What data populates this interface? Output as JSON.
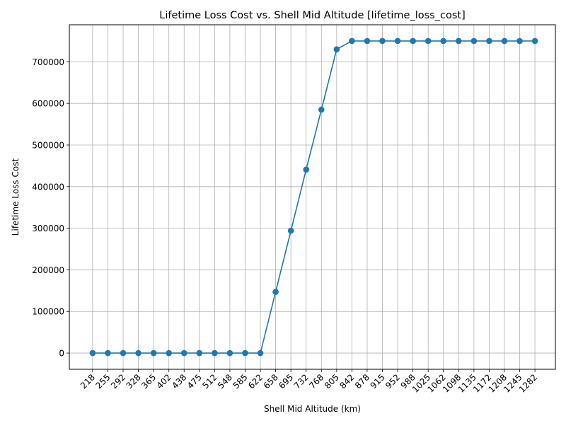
{
  "chart_data": {
    "type": "line",
    "title": "Lifetime Loss Cost vs. Shell Mid Altitude [lifetime_loss_cost]",
    "xlabel": "Shell Mid Altitude (km)",
    "ylabel": "Lifetime Loss Cost",
    "categories": [
      "218",
      "255",
      "292",
      "328",
      "365",
      "402",
      "438",
      "475",
      "512",
      "548",
      "585",
      "622",
      "658",
      "695",
      "732",
      "768",
      "805",
      "842",
      "878",
      "915",
      "952",
      "988",
      "1025",
      "1062",
      "1098",
      "1135",
      "1172",
      "1208",
      "1245",
      "1282"
    ],
    "series": [
      {
        "values": [
          0,
          0,
          0,
          0,
          0,
          0,
          0,
          0,
          0,
          0,
          0,
          0,
          147000,
          294000,
          441000,
          585000,
          730000,
          750000,
          750000,
          750000,
          750000,
          750000,
          750000,
          750000,
          750000,
          750000,
          750000,
          750000,
          750000,
          750000
        ],
        "color": "#1f77b4",
        "marker": "circle"
      }
    ],
    "yticks": [
      0,
      100000,
      200000,
      300000,
      400000,
      500000,
      600000,
      700000
    ],
    "ylim": [
      -39000,
      789000
    ],
    "grid": true,
    "legend": "none"
  }
}
